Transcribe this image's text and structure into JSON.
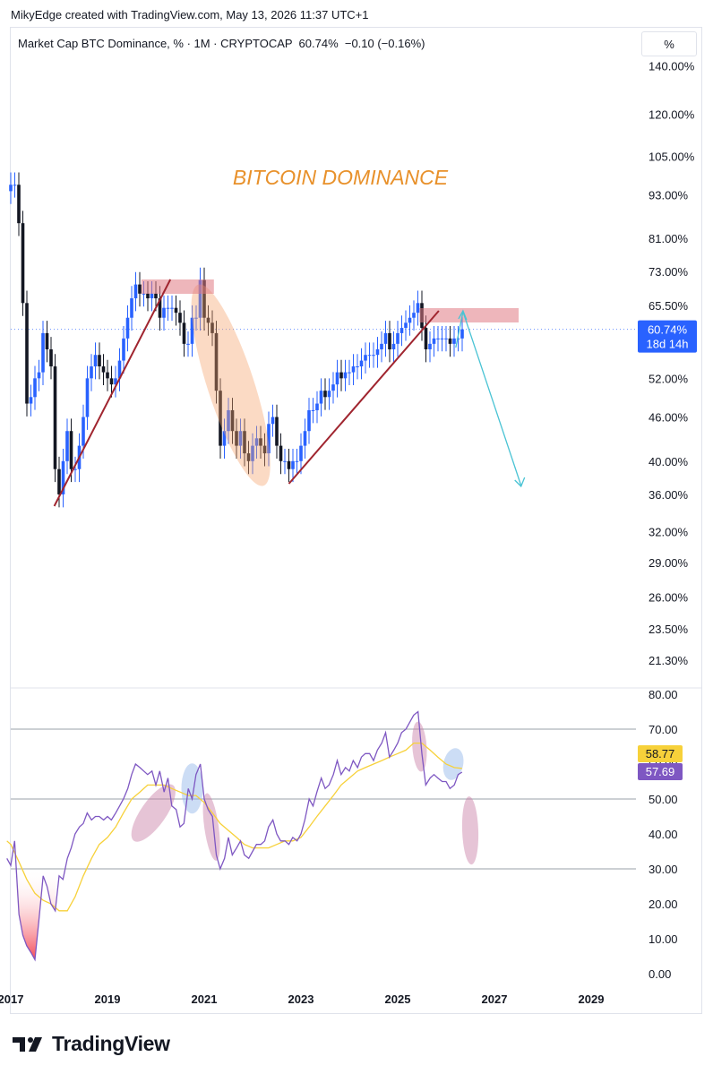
{
  "header": {
    "attribution": "MikyEdge created with TradingView.com, May 13, 2026 11:37 UTC+1"
  },
  "legend": {
    "text": "Market Cap BTC Dominance, % · 1M · CRYPTOCAP  60.74%  −0.10 (−0.16%)"
  },
  "scale_button": {
    "label": "%"
  },
  "annotation": {
    "title": "BITCOIN DOMINANCE",
    "color": "#e8912b"
  },
  "price_tag": {
    "value": "60.74%",
    "countdown": "18d 14h",
    "color": "#2962ff"
  },
  "rsi_tags": {
    "ma_value": "58.77",
    "ma_color": "#f7d13a",
    "rsi_value": "57.69",
    "rsi_color": "#7e57c2"
  },
  "footer": {
    "brand": "TradingView"
  },
  "chart_data": [
    {
      "type": "candlestick",
      "title": "",
      "scale": "log",
      "ylim": [
        19.5,
        150
      ],
      "y_tick_labels": [
        "140.00%",
        "120.00%",
        "105.00%",
        "93.00%",
        "81.00%",
        "73.00%",
        "65.50%",
        "52.00%",
        "46.00%",
        "40.00%",
        "36.00%",
        "32.00%",
        "29.00%",
        "26.00%",
        "23.50%",
        "21.30%"
      ],
      "x_tick_labels": [
        "2017",
        "2019",
        "2021",
        "2023",
        "2025",
        "2027",
        "2029"
      ],
      "series_close": [
        [
          "2017-01",
          96
        ],
        [
          "2017-02",
          96
        ],
        [
          "2017-03",
          85
        ],
        [
          "2017-04",
          66
        ],
        [
          "2017-05",
          48
        ],
        [
          "2017-06",
          49
        ],
        [
          "2017-07",
          52
        ],
        [
          "2017-08",
          53
        ],
        [
          "2017-09",
          60
        ],
        [
          "2017-10",
          57
        ],
        [
          "2017-11",
          54
        ],
        [
          "2017-12",
          39
        ],
        [
          "2018-01",
          36
        ],
        [
          "2018-02",
          40
        ],
        [
          "2018-03",
          44
        ],
        [
          "2018-04",
          39
        ],
        [
          "2018-05",
          39
        ],
        [
          "2018-06",
          42
        ],
        [
          "2018-07",
          46
        ],
        [
          "2018-08",
          52
        ],
        [
          "2018-09",
          54
        ],
        [
          "2018-10",
          56
        ],
        [
          "2018-11",
          54
        ],
        [
          "2018-12",
          53
        ],
        [
          "2019-01",
          52
        ],
        [
          "2019-02",
          51
        ],
        [
          "2019-03",
          52
        ],
        [
          "2019-04",
          55
        ],
        [
          "2019-05",
          59
        ],
        [
          "2019-06",
          63
        ],
        [
          "2019-07",
          67
        ],
        [
          "2019-08",
          70
        ],
        [
          "2019-09",
          68
        ],
        [
          "2019-10",
          68
        ],
        [
          "2019-11",
          67
        ],
        [
          "2019-12",
          68
        ],
        [
          "2020-01",
          67
        ],
        [
          "2020-02",
          63
        ],
        [
          "2020-03",
          65
        ],
        [
          "2020-04",
          65
        ],
        [
          "2020-05",
          65
        ],
        [
          "2020-06",
          64
        ],
        [
          "2020-07",
          62
        ],
        [
          "2020-08",
          58
        ],
        [
          "2020-09",
          58
        ],
        [
          "2020-10",
          63
        ],
        [
          "2020-11",
          63
        ],
        [
          "2020-12",
          71
        ],
        [
          "2021-01",
          63
        ],
        [
          "2021-02",
          62
        ],
        [
          "2021-03",
          60
        ],
        [
          "2021-04",
          50
        ],
        [
          "2021-05",
          42
        ],
        [
          "2021-06",
          44
        ],
        [
          "2021-07",
          47
        ],
        [
          "2021-08",
          44
        ],
        [
          "2021-09",
          42
        ],
        [
          "2021-10",
          44
        ],
        [
          "2021-11",
          41
        ],
        [
          "2021-12",
          40
        ],
        [
          "2022-01",
          42
        ],
        [
          "2022-02",
          43
        ],
        [
          "2022-03",
          42
        ],
        [
          "2022-04",
          41
        ],
        [
          "2022-05",
          45
        ],
        [
          "2022-06",
          46
        ],
        [
          "2022-07",
          42
        ],
        [
          "2022-08",
          40
        ],
        [
          "2022-09",
          40
        ],
        [
          "2022-10",
          39
        ],
        [
          "2022-11",
          40
        ],
        [
          "2022-12",
          40
        ],
        [
          "2023-01",
          42
        ],
        [
          "2023-02",
          44
        ],
        [
          "2023-03",
          47
        ],
        [
          "2023-04",
          47
        ],
        [
          "2023-05",
          48
        ],
        [
          "2023-06",
          50
        ],
        [
          "2023-07",
          49
        ],
        [
          "2023-08",
          50
        ],
        [
          "2023-09",
          51
        ],
        [
          "2023-10",
          53
        ],
        [
          "2023-11",
          52
        ],
        [
          "2023-12",
          53
        ],
        [
          "2024-01",
          53
        ],
        [
          "2024-02",
          54
        ],
        [
          "2024-03",
          54
        ],
        [
          "2024-04",
          55
        ],
        [
          "2024-05",
          56
        ],
        [
          "2024-06",
          56
        ],
        [
          "2024-07",
          56
        ],
        [
          "2024-08",
          57
        ],
        [
          "2024-09",
          58
        ],
        [
          "2024-10",
          60
        ],
        [
          "2024-11",
          57
        ],
        [
          "2024-12",
          58
        ],
        [
          "2025-01",
          60
        ],
        [
          "2025-02",
          61
        ],
        [
          "2025-03",
          62
        ],
        [
          "2025-04",
          63
        ],
        [
          "2025-05",
          64
        ],
        [
          "2025-06",
          66
        ],
        [
          "2025-07",
          61
        ],
        [
          "2025-08",
          57
        ],
        [
          "2025-09",
          58
        ],
        [
          "2025-10",
          59
        ],
        [
          "2025-11",
          59
        ],
        [
          "2025-12",
          59
        ],
        [
          "2026-01",
          59
        ],
        [
          "2026-02",
          58
        ],
        [
          "2026-03",
          59
        ],
        [
          "2026-04",
          59
        ],
        [
          "2026-05",
          60.74
        ]
      ],
      "current_value": 60.74
    },
    {
      "type": "line",
      "title": "",
      "ylim": [
        -2,
        82
      ],
      "y_tick_labels": [
        "80.00",
        "70.00",
        "60.00",
        "50.00",
        "40.00",
        "30.00",
        "20.00",
        "10.00",
        "0.00"
      ],
      "levels": [
        70,
        50,
        30
      ],
      "series": [
        {
          "values": [
            [
              2016.92,
              33
            ],
            [
              2017.0,
              31
            ],
            [
              2017.08,
              38
            ],
            [
              2017.17,
              17
            ],
            [
              2017.25,
              11
            ],
            [
              2017.33,
              8
            ],
            [
              2017.42,
              6
            ],
            [
              2017.5,
              4
            ],
            [
              2017.58,
              15
            ],
            [
              2017.67,
              28
            ],
            [
              2017.75,
              25
            ],
            [
              2017.83,
              20
            ],
            [
              2017.92,
              18
            ],
            [
              2018.0,
              28
            ],
            [
              2018.08,
              27
            ],
            [
              2018.17,
              33
            ],
            [
              2018.25,
              36
            ],
            [
              2018.33,
              40
            ],
            [
              2018.42,
              42
            ],
            [
              2018.5,
              43
            ],
            [
              2018.58,
              46
            ],
            [
              2018.67,
              44
            ],
            [
              2018.75,
              45
            ],
            [
              2018.83,
              45
            ],
            [
              2018.92,
              44
            ],
            [
              2019.0,
              45
            ],
            [
              2019.08,
              44
            ],
            [
              2019.17,
              46
            ],
            [
              2019.25,
              48
            ],
            [
              2019.33,
              50
            ],
            [
              2019.42,
              53
            ],
            [
              2019.5,
              57
            ],
            [
              2019.58,
              60
            ],
            [
              2019.67,
              59
            ],
            [
              2019.75,
              58
            ],
            [
              2019.83,
              57
            ],
            [
              2019.92,
              58
            ],
            [
              2020.0,
              54
            ],
            [
              2020.08,
              58
            ],
            [
              2020.17,
              52
            ],
            [
              2020.25,
              56
            ],
            [
              2020.33,
              48
            ],
            [
              2020.42,
              47
            ],
            [
              2020.5,
              42
            ],
            [
              2020.58,
              43
            ],
            [
              2020.67,
              53
            ],
            [
              2020.75,
              50
            ],
            [
              2020.83,
              57
            ],
            [
              2020.92,
              60
            ],
            [
              2021.0,
              50
            ],
            [
              2021.08,
              47
            ],
            [
              2021.17,
              45
            ],
            [
              2021.25,
              34
            ],
            [
              2021.33,
              30
            ],
            [
              2021.42,
              33
            ],
            [
              2021.5,
              39
            ],
            [
              2021.58,
              34
            ],
            [
              2021.67,
              36
            ],
            [
              2021.75,
              38
            ],
            [
              2021.83,
              34
            ],
            [
              2021.92,
              33
            ],
            [
              2022.0,
              35
            ],
            [
              2022.08,
              37
            ],
            [
              2022.17,
              37
            ],
            [
              2022.25,
              38
            ],
            [
              2022.33,
              42
            ],
            [
              2022.42,
              44
            ],
            [
              2022.5,
              40
            ],
            [
              2022.58,
              38
            ],
            [
              2022.67,
              38
            ],
            [
              2022.75,
              37
            ],
            [
              2022.83,
              39
            ],
            [
              2022.92,
              38
            ],
            [
              2023.0,
              40
            ],
            [
              2023.08,
              44
            ],
            [
              2023.17,
              50
            ],
            [
              2023.25,
              48
            ],
            [
              2023.33,
              52
            ],
            [
              2023.42,
              56
            ],
            [
              2023.5,
              53
            ],
            [
              2023.58,
              54
            ],
            [
              2023.67,
              57
            ],
            [
              2023.75,
              61
            ],
            [
              2023.83,
              57
            ],
            [
              2023.92,
              59
            ],
            [
              2024.0,
              58
            ],
            [
              2024.08,
              61
            ],
            [
              2024.17,
              59
            ],
            [
              2024.25,
              62
            ],
            [
              2024.33,
              63
            ],
            [
              2024.42,
              63
            ],
            [
              2024.5,
              61
            ],
            [
              2024.58,
              64
            ],
            [
              2024.67,
              66
            ],
            [
              2024.75,
              69
            ],
            [
              2024.83,
              62
            ],
            [
              2024.92,
              64
            ],
            [
              2025.0,
              66
            ],
            [
              2025.08,
              69
            ],
            [
              2025.17,
              70
            ],
            [
              2025.25,
              72
            ],
            [
              2025.33,
              74
            ],
            [
              2025.42,
              75
            ],
            [
              2025.5,
              63
            ],
            [
              2025.58,
              54
            ],
            [
              2025.67,
              56
            ],
            [
              2025.75,
              57
            ],
            [
              2025.83,
              56
            ],
            [
              2025.92,
              55
            ],
            [
              2026.0,
              55
            ],
            [
              2026.08,
              53
            ],
            [
              2026.17,
              54
            ],
            [
              2026.25,
              57
            ],
            [
              2026.33,
              57.69
            ]
          ]
        },
        {
          "values": [
            [
              2016.92,
              38
            ],
            [
              2017.0,
              37
            ],
            [
              2017.17,
              32
            ],
            [
              2017.33,
              27
            ],
            [
              2017.5,
              23
            ],
            [
              2017.67,
              21
            ],
            [
              2017.83,
              20
            ],
            [
              2018.0,
              18
            ],
            [
              2018.17,
              18
            ],
            [
              2018.33,
              22
            ],
            [
              2018.5,
              28
            ],
            [
              2018.67,
              33
            ],
            [
              2018.83,
              37
            ],
            [
              2019.0,
              39
            ],
            [
              2019.17,
              42
            ],
            [
              2019.33,
              46
            ],
            [
              2019.5,
              50
            ],
            [
              2019.67,
              52
            ],
            [
              2019.83,
              54
            ],
            [
              2020.0,
              54
            ],
            [
              2020.17,
              54
            ],
            [
              2020.33,
              53
            ],
            [
              2020.5,
              52
            ],
            [
              2020.67,
              51
            ],
            [
              2020.83,
              51
            ],
            [
              2021.0,
              49
            ],
            [
              2021.17,
              46
            ],
            [
              2021.33,
              43
            ],
            [
              2021.5,
              41
            ],
            [
              2021.67,
              39
            ],
            [
              2021.83,
              37
            ],
            [
              2022.0,
              36
            ],
            [
              2022.17,
              36
            ],
            [
              2022.33,
              36
            ],
            [
              2022.5,
              37
            ],
            [
              2022.67,
              38
            ],
            [
              2022.83,
              38
            ],
            [
              2023.0,
              39
            ],
            [
              2023.17,
              42
            ],
            [
              2023.33,
              45
            ],
            [
              2023.5,
              48
            ],
            [
              2023.67,
              51
            ],
            [
              2023.83,
              54
            ],
            [
              2024.0,
              56
            ],
            [
              2024.17,
              58
            ],
            [
              2024.33,
              59
            ],
            [
              2024.5,
              60
            ],
            [
              2024.67,
              61
            ],
            [
              2024.83,
              62
            ],
            [
              2025.0,
              63
            ],
            [
              2025.17,
              64
            ],
            [
              2025.33,
              66
            ],
            [
              2025.5,
              66
            ],
            [
              2025.67,
              64
            ],
            [
              2025.83,
              62
            ],
            [
              2026.0,
              60
            ],
            [
              2026.17,
              59
            ],
            [
              2026.33,
              58.77
            ]
          ]
        }
      ]
    }
  ]
}
